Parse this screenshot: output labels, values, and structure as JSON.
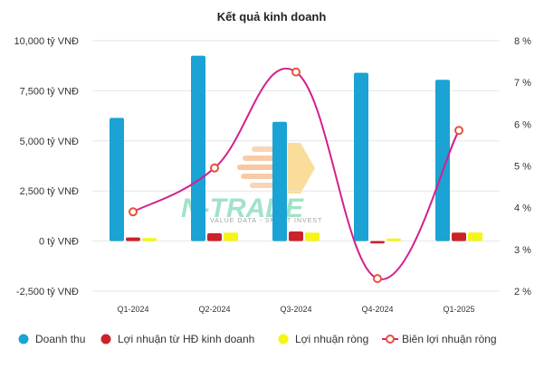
{
  "chart_data": {
    "type": "bar",
    "title": "Kết quả kinh doanh",
    "categories": [
      "Q1-2024",
      "Q2-2024",
      "Q3-2024",
      "Q4-2024",
      "Q1-2025"
    ],
    "series": [
      {
        "name": "Doanh thu",
        "kind": "bar",
        "axis": "left",
        "color": "#1aa3d4",
        "values": [
          6150,
          9250,
          5950,
          8400,
          8050
        ]
      },
      {
        "name": "Lợi nhuận từ HĐ kinh doanh",
        "kind": "bar",
        "axis": "left",
        "color": "#cc2229",
        "values": [
          180,
          390,
          480,
          -120,
          420
        ]
      },
      {
        "name": "Lợi nhuận ròng",
        "kind": "bar",
        "axis": "left",
        "color": "#f5f516",
        "values": [
          150,
          420,
          420,
          130,
          430
        ]
      },
      {
        "name": "Biên lợi nhuận ròng",
        "kind": "line",
        "axis": "right",
        "color": "#d41f8e",
        "values": [
          3.9,
          4.95,
          7.25,
          2.3,
          5.85
        ]
      }
    ],
    "left_axis": {
      "ticks": [
        -2500,
        0,
        2500,
        5000,
        7500,
        10000
      ],
      "tick_labels": [
        "-2,500 tỷ VNĐ",
        "0 tỷ VNĐ",
        "2,500 tỷ VNĐ",
        "5,000 tỷ VNĐ",
        "7,500 tỷ VNĐ",
        "10,000 tỷ VNĐ"
      ],
      "ylim": [
        -2500,
        10000
      ]
    },
    "right_axis": {
      "ticks": [
        2,
        3,
        4,
        5,
        6,
        7,
        8
      ],
      "tick_labels": [
        "2 %",
        "3 %",
        "4 %",
        "5 %",
        "6 %",
        "7 %",
        "8 %"
      ],
      "ylim": [
        2,
        8
      ]
    },
    "grid": "horizontal",
    "legend_position": "bottom"
  },
  "watermark": {
    "brand": "N-TRADE",
    "tagline": "VALUE DATA - SMART INVEST"
  }
}
